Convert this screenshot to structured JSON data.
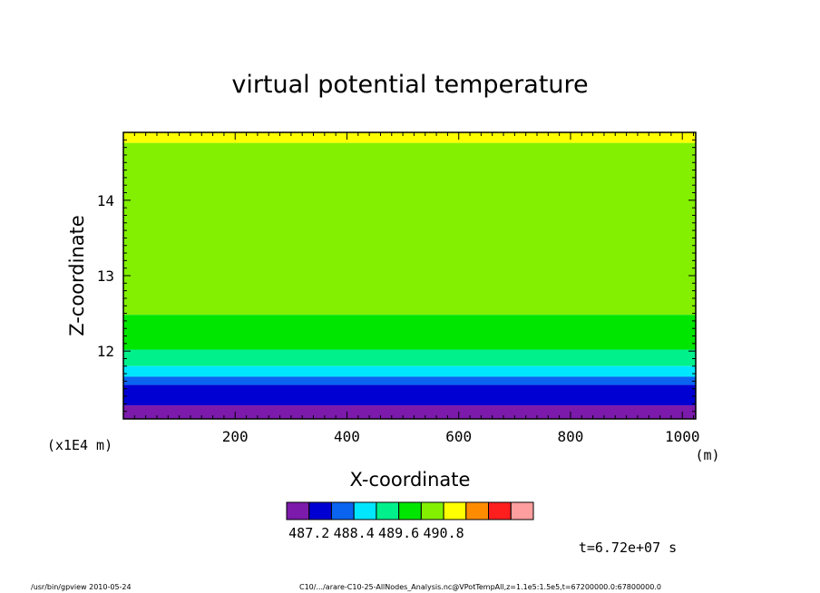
{
  "chart_data": {
    "type": "heatmap",
    "title": "virtual potential temperature",
    "xlabel": "X-coordinate",
    "ylabel": "Z-coordinate",
    "x_unit": "(m)",
    "y_unit": "(x1E4 m)",
    "xlim": [
      0,
      1024
    ],
    "ylim": [
      11.1,
      14.9
    ],
    "x_ticks": [
      200,
      400,
      600,
      800,
      1000
    ],
    "y_ticks": [
      12,
      13,
      14
    ],
    "levels": [
      487.2,
      487.8,
      488.4,
      489.0,
      489.6,
      490.2,
      490.8
    ],
    "colorbar_labels": [
      "487.2",
      "488.4",
      "489.6",
      "490.8"
    ],
    "colorbar_colors": [
      "#7b1aab",
      "#0000d2",
      "#0a64f0",
      "#00e6ff",
      "#00f08c",
      "#00e600",
      "#82f000",
      "#ffff00",
      "#ff8c00",
      "#ff1e1e",
      "#ff9e9e"
    ],
    "bands": [
      {
        "z_bottom": 14.76,
        "z_top": 14.9,
        "color": "#ffff00"
      },
      {
        "z_bottom": 12.48,
        "z_top": 14.76,
        "color": "#82f000"
      },
      {
        "z_bottom": 12.02,
        "z_top": 12.48,
        "color": "#00e600"
      },
      {
        "z_bottom": 11.8,
        "z_top": 12.02,
        "color": "#00f08c"
      },
      {
        "z_bottom": 11.66,
        "z_top": 11.8,
        "color": "#00e6ff"
      },
      {
        "z_bottom": 11.55,
        "z_top": 11.66,
        "color": "#0a64f0"
      },
      {
        "z_bottom": 11.28,
        "z_top": 11.55,
        "color": "#0000d2"
      },
      {
        "z_bottom": 11.1,
        "z_top": 11.28,
        "color": "#7b1aab"
      }
    ],
    "time_label": "t=6.72e+07 s"
  },
  "footer": {
    "left": "/usr/bin/gpview  2010-05-24",
    "right": "C10/.../arare-C10-25-AllNodes_Analysis.nc@VPotTempAll,z=1.1e5:1.5e5,t=67200000.0:67800000.0"
  }
}
